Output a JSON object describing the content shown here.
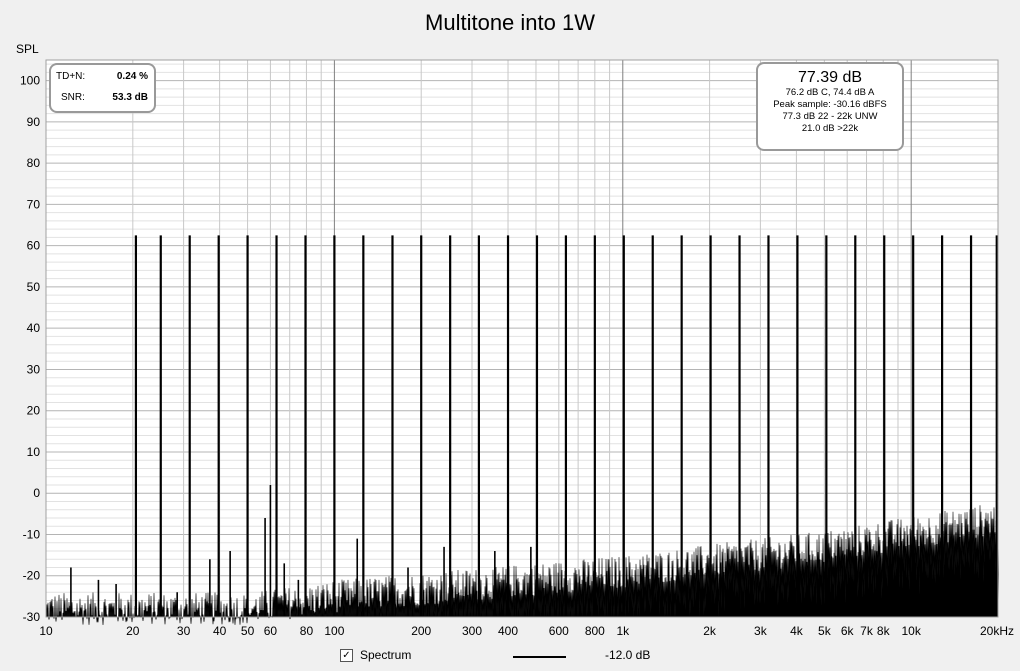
{
  "title": "Multitone into 1W",
  "ylabel": "SPL",
  "thd_box": {
    "rows": [
      {
        "label": "TD+N:",
        "value": "0.24 %"
      },
      {
        "label": "SNR:",
        "value": "53.3 dB"
      }
    ]
  },
  "stats_box": {
    "main": "77.39 dB",
    "lines": [
      "76.2 dB C, 74.4 dB A",
      "Peak sample: -30.16 dBFS",
      "77.3 dB 22 - 22k UNW",
      "21.0 dB >22k"
    ]
  },
  "legend": {
    "checked_glyph": "✓",
    "label": "Spectrum",
    "value": "-12.0 dB"
  },
  "colors": {
    "background": "#f0f0f0",
    "plot_bg": "#ffffff",
    "grid": "#c8c8c8",
    "grid_major": "#808080",
    "trace": "#000000"
  },
  "chart_data": {
    "type": "line",
    "title": "Multitone into 1W",
    "ylabel": "SPL",
    "xlabel": "",
    "x_scale": "log",
    "xlim": [
      10,
      20000
    ],
    "ylim": [
      -30,
      105
    ],
    "y_ticks": [
      100,
      90,
      80,
      70,
      60,
      50,
      40,
      30,
      20,
      10,
      0,
      -10,
      -20,
      -30
    ],
    "x_ticks": [
      {
        "v": 10,
        "t": "10"
      },
      {
        "v": 20,
        "t": "20"
      },
      {
        "v": 30,
        "t": "30"
      },
      {
        "v": 40,
        "t": "40"
      },
      {
        "v": 50,
        "t": "50"
      },
      {
        "v": 60,
        "t": "60"
      },
      {
        "v": 80,
        "t": "80"
      },
      {
        "v": 100,
        "t": "100"
      },
      {
        "v": 200,
        "t": "200"
      },
      {
        "v": 300,
        "t": "300"
      },
      {
        "v": 400,
        "t": "400"
      },
      {
        "v": 600,
        "t": "600"
      },
      {
        "v": 800,
        "t": "800"
      },
      {
        "v": 1000,
        "t": "1k"
      },
      {
        "v": 2000,
        "t": "2k"
      },
      {
        "v": 3000,
        "t": "3k"
      },
      {
        "v": 4000,
        "t": "4k"
      },
      {
        "v": 5000,
        "t": "5k"
      },
      {
        "v": 6000,
        "t": "6k"
      },
      {
        "v": 7000,
        "t": "7k"
      },
      {
        "v": 8000,
        "t": "8k"
      },
      {
        "v": 10000,
        "t": "10k"
      },
      {
        "v": 20000,
        "t": "20kHz"
      }
    ],
    "grid": true,
    "series": [
      {
        "name": "Spectrum",
        "tone_level": 62.5,
        "tones": [
          20.5,
          25,
          31.5,
          39.7,
          50,
          63,
          79.4,
          100,
          126,
          159,
          200,
          252,
          317,
          400,
          504,
          635,
          800,
          1008,
          1270,
          1600,
          2016,
          2540,
          3200,
          4032,
          5080,
          6400,
          8064,
          10160,
          12800,
          16128,
          19800
        ],
        "spurs": [
          {
            "f": 12.2,
            "db": -18
          },
          {
            "f": 15.2,
            "db": -21
          },
          {
            "f": 17.5,
            "db": -22
          },
          {
            "f": 28.5,
            "db": -24
          },
          {
            "f": 37,
            "db": -16
          },
          {
            "f": 43.5,
            "db": -14
          },
          {
            "f": 57.5,
            "db": -6
          },
          {
            "f": 60,
            "db": 2
          },
          {
            "f": 67,
            "db": -17
          },
          {
            "f": 75,
            "db": -21
          },
          {
            "f": 120,
            "db": -11
          },
          {
            "f": 180,
            "db": -18
          },
          {
            "f": 240,
            "db": -13
          },
          {
            "f": 360,
            "db": -14
          },
          {
            "f": 480,
            "db": -13
          }
        ],
        "noise_floor": [
          {
            "f": 10,
            "db": -28
          },
          {
            "f": 50,
            "db": -28
          },
          {
            "f": 100,
            "db": -25
          },
          {
            "f": 1000,
            "db": -19
          },
          {
            "f": 5000,
            "db": -13
          },
          {
            "f": 20000,
            "db": -6
          }
        ]
      }
    ]
  }
}
